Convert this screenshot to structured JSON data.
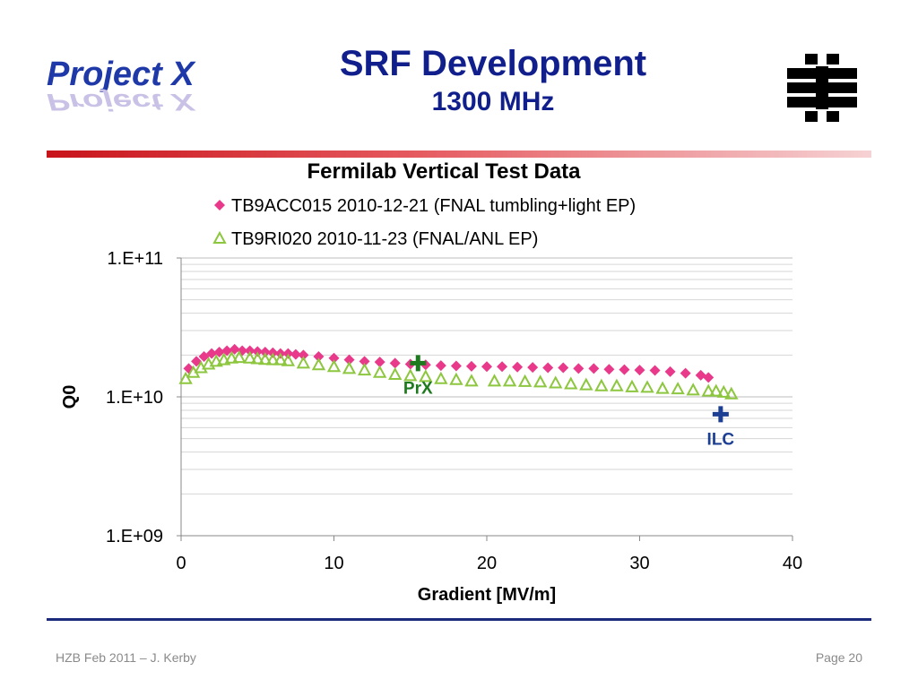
{
  "slide": {
    "logo_text": "Project X",
    "title": "SRF Development",
    "subtitle": "1300 MHz",
    "footer_left": "HZB Feb 2011 – J. Kerby",
    "footer_right": "Page 20",
    "accent_color": "#101f8c",
    "logo_right_icon": "fermilab-logo-icon"
  },
  "chart_data": {
    "type": "scatter",
    "title": "Fermilab Vertical Test Data",
    "xlabel": "Gradient [MV/m]",
    "ylabel": "Q0",
    "xlim": [
      0,
      40
    ],
    "ylim": [
      1000000000.0,
      100000000000.0
    ],
    "yscale": "log",
    "xticks": [
      0,
      10,
      20,
      30,
      40
    ],
    "xtick_labels": [
      "0",
      "10",
      "20",
      "30",
      "40"
    ],
    "yticks": [
      1000000000.0,
      10000000000.0,
      100000000000.0
    ],
    "ytick_labels": [
      "1.E+09",
      "1.E+10",
      "1.E+11"
    ],
    "grid": true,
    "legend_position": "top",
    "series": [
      {
        "name": "TB9ACC015 2010-12-21 (FNAL tumbling+light EP)",
        "marker": "diamond",
        "color": "#e8398a",
        "x": [
          0.5,
          1.0,
          1.5,
          2.0,
          2.5,
          3.0,
          3.5,
          4.0,
          4.5,
          5.0,
          5.5,
          6.0,
          6.5,
          7.0,
          7.5,
          8.0,
          9.0,
          10.0,
          11.0,
          12.0,
          13.0,
          14.0,
          15.0,
          16.0,
          17.0,
          18.0,
          19.0,
          20.0,
          21.0,
          22.0,
          23.0,
          24.0,
          25.0,
          26.0,
          27.0,
          28.0,
          29.0,
          30.0,
          31.0,
          32.0,
          33.0,
          34.0,
          34.5
        ],
        "y": [
          16000000000.0,
          18000000000.0,
          19500000000.0,
          20500000000.0,
          21000000000.0,
          21500000000.0,
          22000000000.0,
          21500000000.0,
          21500000000.0,
          21200000000.0,
          21000000000.0,
          20800000000.0,
          20500000000.0,
          20500000000.0,
          20200000000.0,
          20000000000.0,
          19500000000.0,
          19000000000.0,
          18500000000.0,
          18000000000.0,
          17800000000.0,
          17500000000.0,
          17200000000.0,
          17000000000.0,
          16800000000.0,
          16700000000.0,
          16600000000.0,
          16500000000.0,
          16500000000.0,
          16400000000.0,
          16300000000.0,
          16200000000.0,
          16200000000.0,
          16000000000.0,
          16000000000.0,
          15800000000.0,
          15700000000.0,
          15600000000.0,
          15500000000.0,
          15200000000.0,
          14800000000.0,
          14300000000.0,
          13800000000.0
        ]
      },
      {
        "name": "TB9RI020 2010-11-23 (FNAL/ANL EP)",
        "marker": "triangle-open",
        "color": "#8dc63f",
        "x": [
          0.3,
          0.8,
          1.3,
          1.8,
          2.3,
          2.8,
          3.3,
          3.8,
          4.5,
          5.0,
          5.5,
          6.0,
          6.5,
          7.0,
          8.0,
          9.0,
          10.0,
          11.0,
          12.0,
          13.0,
          14.0,
          15.0,
          16.0,
          17.0,
          18.0,
          19.0,
          20.5,
          21.5,
          22.5,
          23.5,
          24.5,
          25.5,
          26.5,
          27.5,
          28.5,
          29.5,
          30.5,
          31.5,
          32.5,
          33.5,
          34.5,
          35.0,
          35.5,
          36.0
        ],
        "y": [
          13500000000.0,
          15000000000.0,
          16200000000.0,
          17200000000.0,
          18000000000.0,
          18500000000.0,
          19000000000.0,
          19200000000.0,
          19000000000.0,
          18800000000.0,
          18600000000.0,
          18500000000.0,
          18500000000.0,
          18200000000.0,
          17500000000.0,
          17000000000.0,
          16500000000.0,
          16000000000.0,
          15600000000.0,
          15000000000.0,
          14500000000.0,
          14200000000.0,
          14000000000.0,
          13500000000.0,
          13300000000.0,
          13000000000.0,
          13000000000.0,
          13000000000.0,
          12900000000.0,
          12800000000.0,
          12600000000.0,
          12400000000.0,
          12200000000.0,
          12000000000.0,
          12000000000.0,
          11800000000.0,
          11700000000.0,
          11500000000.0,
          11400000000.0,
          11200000000.0,
          11000000000.0,
          11000000000.0,
          10800000000.0,
          10500000000.0
        ]
      }
    ],
    "annotations": [
      {
        "text": "PrX",
        "x": 15.5,
        "y": 17500000000.0,
        "marker": "plus",
        "color": "#1e7a1e"
      },
      {
        "text": "ILC",
        "x": 35.3,
        "y": 7500000000.0,
        "marker": "plus",
        "color": "#1c3f94"
      }
    ]
  }
}
